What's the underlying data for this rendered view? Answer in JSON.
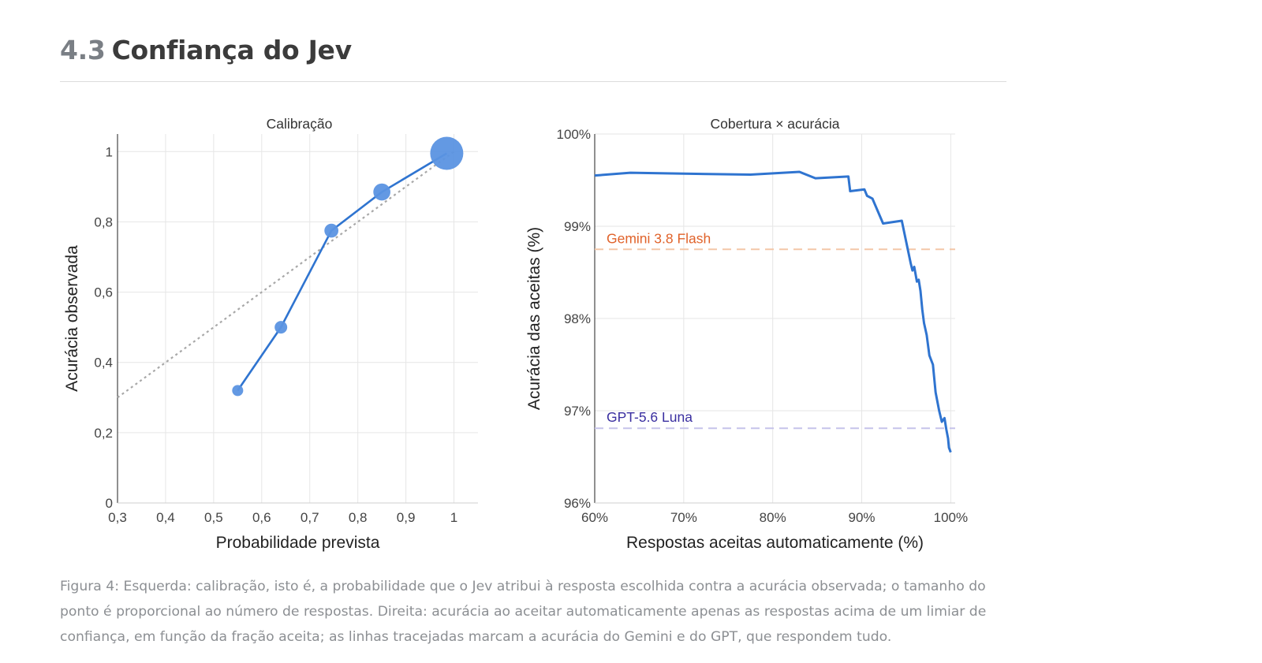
{
  "header": {
    "number": "4.3",
    "title": "Confiança do Jev"
  },
  "caption": "Figura 4: Esquerda: calibração, isto é, a probabilidade que o Jev atribui à resposta escolhida contra a acurácia observada; o tamanho do ponto é proporcional ao número de respostas. Direita: acurácia ao aceitar automaticamente apenas as respostas acima de um limiar de confiança, em função da fração aceita; as linhas tracejadas marcam a acurácia do Gemini e do GPT, que respondem tudo.",
  "colors": {
    "series": "#2f74d0",
    "point": "#5b93e2",
    "diagonal": "#a8a8a8",
    "gemini": "#e0622a",
    "gemini_line": "#f3c7a8",
    "gpt": "#3a2fa0",
    "gpt_line": "#c6c3ea",
    "grid": "#e6e6e6"
  },
  "chart_data": [
    {
      "type": "scatter",
      "title": "Calibração",
      "xlabel": "Probabilidade prevista",
      "ylabel": "Acurácia observada",
      "xlim": [
        0.3,
        1.05
      ],
      "ylim": [
        0,
        1.05
      ],
      "xticks": [
        0.3,
        0.4,
        0.5,
        0.6,
        0.7,
        0.8,
        0.9,
        1.0
      ],
      "xtick_labels": [
        "0,3",
        "0,4",
        "0,5",
        "0,6",
        "0,7",
        "0,8",
        "0,9",
        "1"
      ],
      "yticks": [
        0,
        0.2,
        0.4,
        0.6,
        0.8,
        1.0
      ],
      "ytick_labels": [
        "0",
        "0,2",
        "0,4",
        "0,6",
        "0,8",
        "1"
      ],
      "grid": true,
      "reference_line": {
        "x": [
          0.3,
          1.0
        ],
        "y": [
          0.3,
          1.0
        ],
        "style": "dotted"
      },
      "points": [
        {
          "x": 0.55,
          "y": 0.32,
          "size": 1
        },
        {
          "x": 0.64,
          "y": 0.5,
          "size": 1.3
        },
        {
          "x": 0.745,
          "y": 0.775,
          "size": 1.6
        },
        {
          "x": 0.85,
          "y": 0.885,
          "size": 2.4
        },
        {
          "x": 0.985,
          "y": 0.995,
          "size": 9
        }
      ]
    },
    {
      "type": "line",
      "title": "Cobertura × acurácia",
      "xlabel": "Respostas aceitas automaticamente (%)",
      "ylabel": "Acurácia das aceitas (%)",
      "xlim": [
        60,
        100.5
      ],
      "ylim": [
        96,
        100
      ],
      "xticks": [
        60,
        70,
        80,
        90,
        100
      ],
      "xtick_labels": [
        "60%",
        "70%",
        "80%",
        "90%",
        "100%"
      ],
      "yticks": [
        96,
        97,
        98,
        99,
        100
      ],
      "ytick_labels": [
        "96%",
        "97%",
        "98%",
        "99%",
        "100%"
      ],
      "grid": true,
      "x": [
        60,
        64,
        70,
        77.5,
        83,
        84.8,
        88.5,
        88.7,
        90.3,
        90.6,
        91.2,
        92.4,
        94.5,
        95.5,
        95.7,
        95.9,
        96.2,
        96.4,
        96.6,
        96.8,
        97.0,
        97.3,
        97.6,
        98.0,
        98.3,
        98.5,
        98.7,
        99.0,
        99.3,
        99.5,
        99.7,
        99.8,
        100
      ],
      "y": [
        99.55,
        99.58,
        99.57,
        99.56,
        99.59,
        99.52,
        99.54,
        99.38,
        99.4,
        99.33,
        99.3,
        99.03,
        99.06,
        98.6,
        98.52,
        98.56,
        98.4,
        98.42,
        98.3,
        98.1,
        97.95,
        97.82,
        97.6,
        97.5,
        97.2,
        97.1,
        97.0,
        96.88,
        96.92,
        96.8,
        96.7,
        96.6,
        96.55
      ],
      "reference_lines": [
        {
          "name": "Gemini 3.8 Flash",
          "y": 98.75
        },
        {
          "name": "GPT-5.6 Luna",
          "y": 96.81
        }
      ]
    }
  ]
}
